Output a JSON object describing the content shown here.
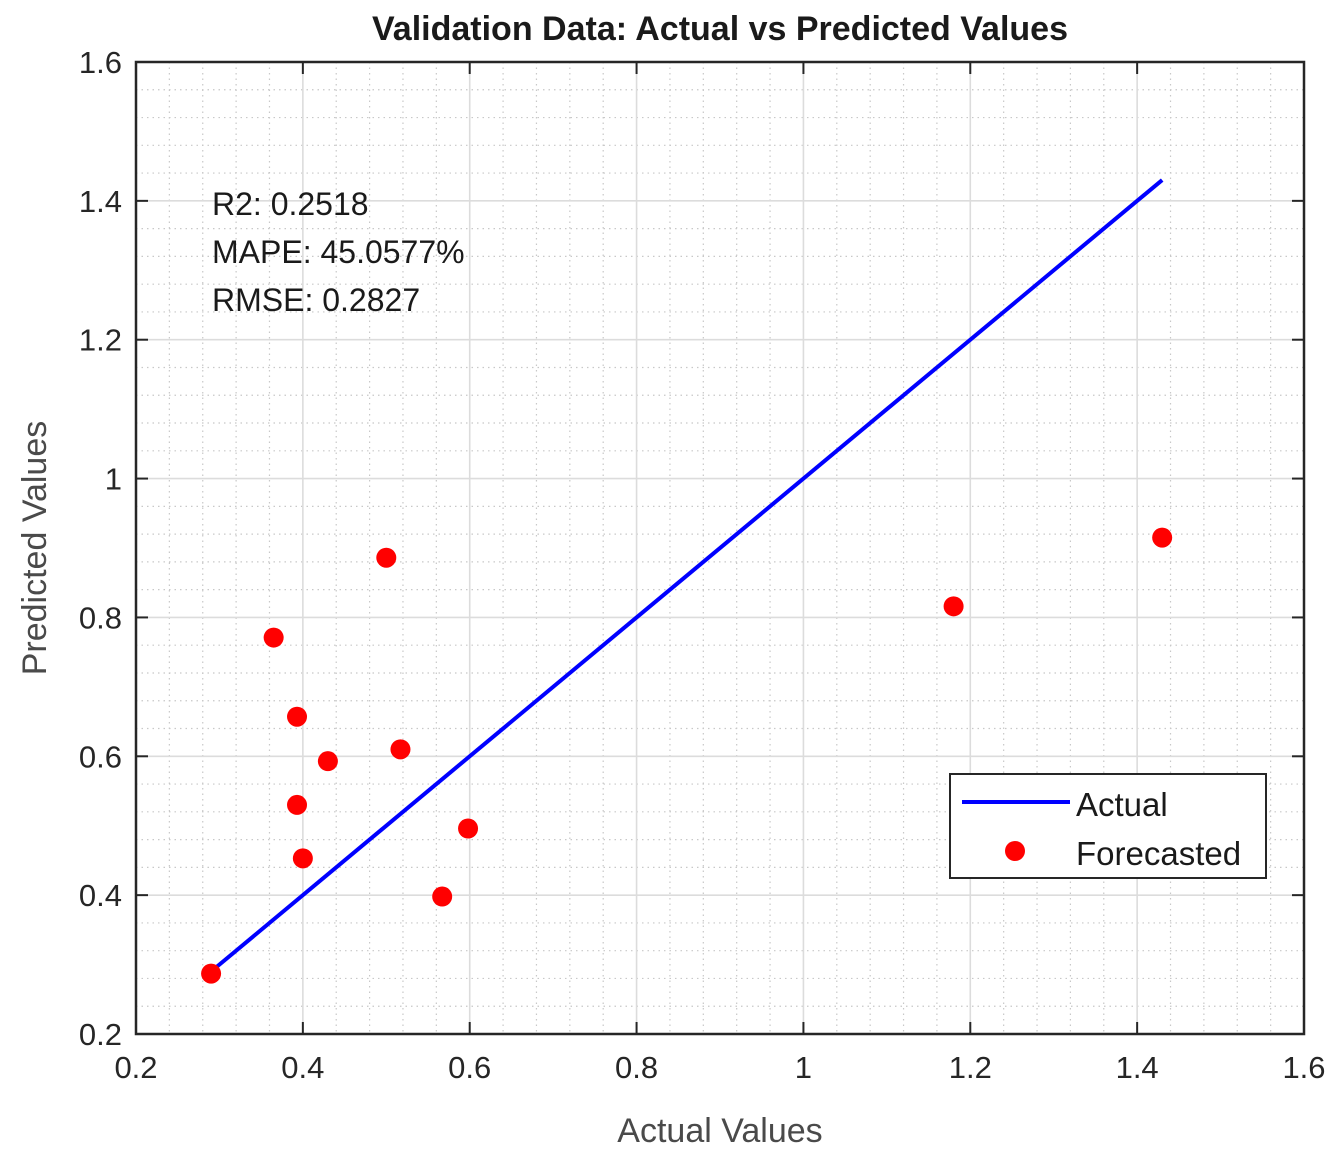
{
  "chart_data": {
    "type": "scatter",
    "title": "Validation Data: Actual vs Predicted Values",
    "xlabel": "Actual Values",
    "ylabel": "Predicted Values",
    "xlim": [
      0.2,
      1.6
    ],
    "ylim": [
      0.2,
      1.6
    ],
    "xticks": [
      0.2,
      0.4,
      0.6,
      0.8,
      1,
      1.2,
      1.4,
      1.6
    ],
    "yticks": [
      0.2,
      0.4,
      0.6,
      0.8,
      1,
      1.2,
      1.4,
      1.6
    ],
    "xtick_labels": [
      "0.2",
      "0.4",
      "0.6",
      "0.8",
      "1",
      "1.2",
      "1.4",
      "1.6"
    ],
    "ytick_labels": [
      "0.2",
      "0.4",
      "0.6",
      "0.8",
      "1",
      "1.2",
      "1.4",
      "1.6"
    ],
    "grid": true,
    "minor_grid": true,
    "legend_position": "bottom-right",
    "series": [
      {
        "name": "Actual",
        "kind": "line",
        "color": "#0000ff",
        "x": [
          0.29,
          1.43
        ],
        "y": [
          0.29,
          1.43
        ]
      },
      {
        "name": "Forecasted",
        "kind": "scatter",
        "color": "#ff0000",
        "x": [
          0.29,
          0.365,
          0.393,
          0.393,
          0.4,
          0.43,
          0.5,
          0.517,
          0.567,
          0.598,
          1.18,
          1.43
        ],
        "y": [
          0.287,
          0.771,
          0.657,
          0.53,
          0.453,
          0.593,
          0.886,
          0.61,
          0.398,
          0.496,
          0.816,
          0.915
        ]
      }
    ],
    "annotations": [
      "R2: 0.2518",
      "MAPE: 45.0577%",
      "RMSE: 0.2827"
    ]
  }
}
